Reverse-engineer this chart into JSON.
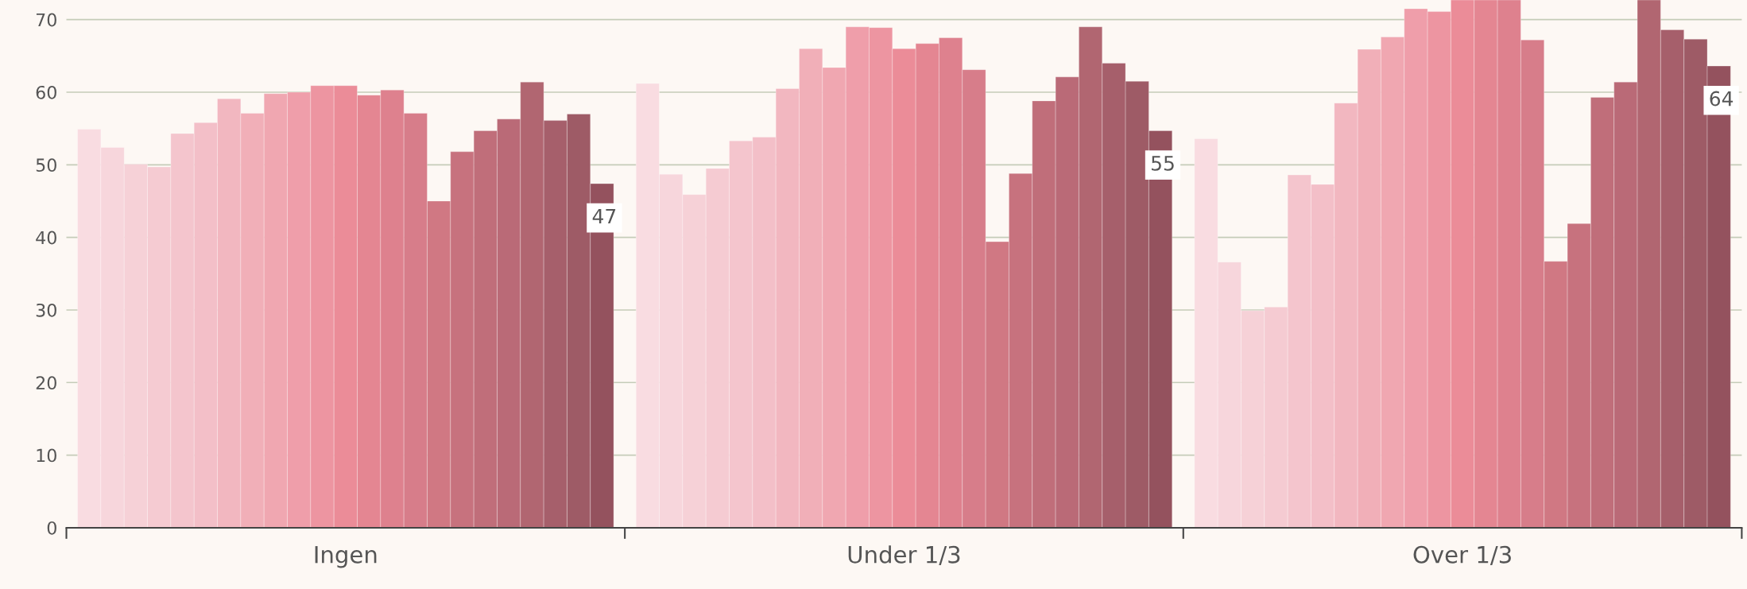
{
  "chart_data": {
    "type": "bar",
    "categories": [
      "Ingen",
      "Under 1/3",
      "Over 1/3"
    ],
    "ylim": [
      0,
      72.7
    ],
    "yticks": [
      0,
      10,
      20,
      30,
      40,
      50,
      60,
      70
    ],
    "grid": "y",
    "legend": false,
    "series": [
      {
        "color": "#f9dce1",
        "values": [
          54.9,
          61.2,
          53.6
        ]
      },
      {
        "color": "#f7d6dc",
        "values": [
          52.4,
          48.7,
          36.6
        ]
      },
      {
        "color": "#f6d1d7",
        "values": [
          50.1,
          45.9,
          29.9
        ]
      },
      {
        "color": "#f5cbd2",
        "values": [
          49.7,
          49.5,
          30.4
        ]
      },
      {
        "color": "#f4c5cd",
        "values": [
          54.3,
          53.3,
          48.6
        ]
      },
      {
        "color": "#f3bfc8",
        "values": [
          55.8,
          53.8,
          47.3
        ]
      },
      {
        "color": "#f2b7c0",
        "values": [
          59.1,
          60.5,
          58.5
        ]
      },
      {
        "color": "#f1afb8",
        "values": [
          57.1,
          66.0,
          65.9
        ]
      },
      {
        "color": "#f0a7b1",
        "values": [
          59.8,
          63.4,
          67.6
        ]
      },
      {
        "color": "#ef9eaa",
        "values": [
          60.0,
          69.0,
          71.5
        ]
      },
      {
        "color": "#ed95a1",
        "values": [
          60.9,
          68.9,
          71.1
        ]
      },
      {
        "color": "#eb8c98",
        "values": [
          60.9,
          66.0,
          72.7
        ]
      },
      {
        "color": "#e48692",
        "values": [
          59.6,
          66.7,
          72.7
        ]
      },
      {
        "color": "#de818e",
        "values": [
          60.3,
          67.5,
          72.7
        ]
      },
      {
        "color": "#d77d8a",
        "values": [
          57.1,
          63.1,
          67.2
        ]
      },
      {
        "color": "#d07883",
        "values": [
          45.0,
          39.4,
          36.7
        ]
      },
      {
        "color": "#c7727e",
        "values": [
          51.8,
          48.8,
          41.9
        ]
      },
      {
        "color": "#c06e7a",
        "values": [
          54.7,
          58.8,
          59.3
        ]
      },
      {
        "color": "#ba6a77",
        "values": [
          56.3,
          62.1,
          61.4
        ]
      },
      {
        "color": "#b16671",
        "values": [
          61.4,
          69.0,
          72.7
        ]
      },
      {
        "color": "#a65f6b",
        "values": [
          56.1,
          64.0,
          68.6
        ]
      },
      {
        "color": "#9e5b66",
        "values": [
          57.0,
          61.5,
          67.3
        ]
      },
      {
        "color": "#94525e",
        "values": [
          47.4,
          54.7,
          63.6
        ],
        "value_labels": [
          "47",
          "55",
          "64"
        ]
      }
    ]
  }
}
